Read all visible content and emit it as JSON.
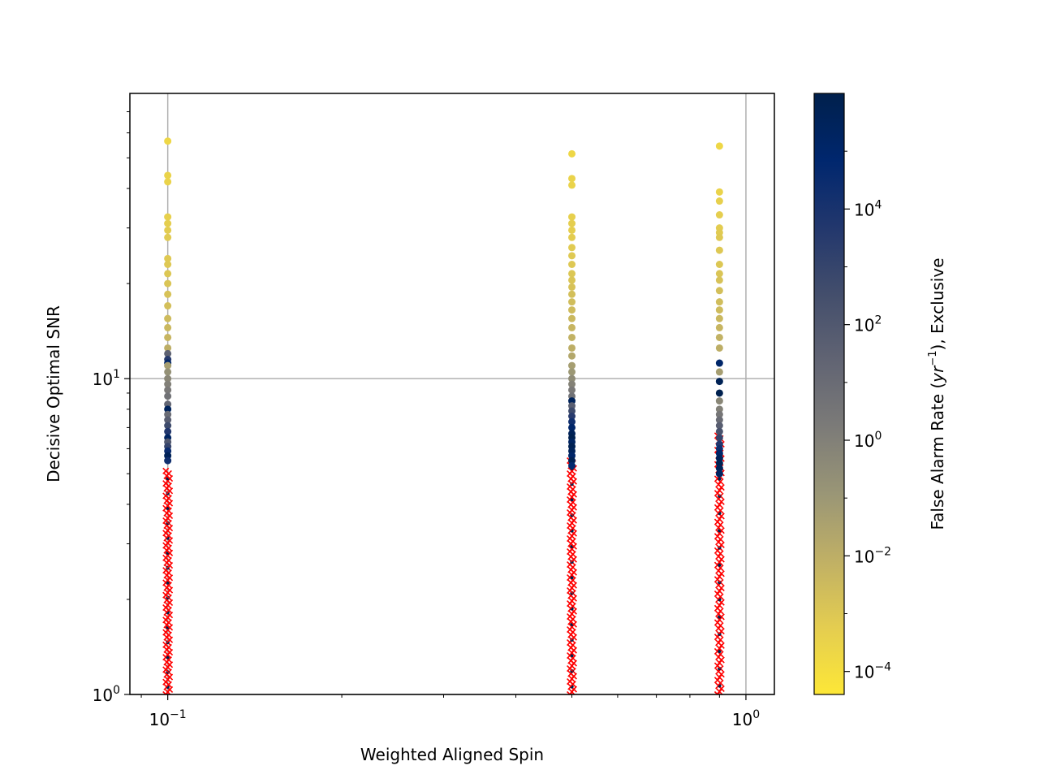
{
  "chart_data": {
    "type": "scatter",
    "xlabel": "Weighted Aligned Spin",
    "ylabel": "Decisive Optimal SNR",
    "xscale": "log",
    "yscale": "log",
    "xlim": [
      0.086,
      1.12
    ],
    "ylim": [
      1,
      80
    ],
    "grid": true,
    "x_ticks": [
      {
        "value": 0.1,
        "base": "10",
        "exp": "−1"
      },
      {
        "value": 1,
        "base": "10",
        "exp": "0"
      }
    ],
    "y_ticks": [
      {
        "value": 1,
        "base": "10",
        "exp": "0"
      },
      {
        "value": 10,
        "base": "10",
        "exp": "1"
      }
    ],
    "colorbar": {
      "label_prefix": "False Alarm Rate (",
      "label_var": "yr",
      "label_exp": "−1",
      "label_suffix": "), Exclusive",
      "scale": "log",
      "range": [
        4e-05,
        1000000.0
      ],
      "colormap": "cividis_r",
      "ticks": [
        {
          "value": 0.0001,
          "base": "10",
          "exp": "−4"
        },
        {
          "value": 0.01,
          "base": "10",
          "exp": "−2"
        },
        {
          "value": 1,
          "base": "10",
          "exp": "0"
        },
        {
          "value": 100,
          "base": "10",
          "exp": "2"
        },
        {
          "value": 10000,
          "base": "10",
          "exp": "4"
        }
      ]
    },
    "missed_marker_color": "#ff0000",
    "colormap_stops": [
      "#fde737",
      "#e4cd50",
      "#c0b065",
      "#9a9676",
      "#7c7b78",
      "#616473",
      "#434e6c",
      "#22376d",
      "#00276e",
      "#00204c"
    ],
    "found_series": [
      {
        "x": 0.1,
        "snr": [
          56.5,
          44.0,
          42.0,
          32.5,
          31.0,
          29.5,
          28.0,
          24.0,
          23.0,
          21.5,
          20.0,
          18.5,
          17.0,
          15.5,
          14.5,
          13.5,
          12.5,
          12.0,
          11.5,
          11.2,
          11.0,
          10.5,
          10.0,
          9.6,
          9.2,
          8.8,
          8.3,
          8.0,
          7.7,
          7.4,
          7.1,
          6.8,
          6.5,
          6.3,
          6.1,
          5.9,
          5.7,
          5.5
        ],
        "far": [
          0.0002,
          0.0003,
          0.0003,
          0.0004,
          0.0005,
          0.0006,
          0.0007,
          0.0008,
          0.0009,
          0.001,
          0.0012,
          0.0015,
          0.002,
          0.003,
          0.004,
          0.005,
          0.01,
          30,
          3000,
          100000,
          0.05,
          0.2,
          0.5,
          1,
          2,
          5,
          20,
          300000,
          10,
          50,
          500,
          5000,
          200000,
          100,
          1000,
          30000,
          400000,
          20000
        ]
      },
      {
        "x": 0.5,
        "snr": [
          51.5,
          43.0,
          41.0,
          32.5,
          31.0,
          29.5,
          28.0,
          26.0,
          24.5,
          23.0,
          21.5,
          20.5,
          19.5,
          18.5,
          17.5,
          16.5,
          15.5,
          14.5,
          13.5,
          12.5,
          11.8,
          11.0,
          10.5,
          10.0,
          9.6,
          9.2,
          8.8,
          8.5,
          8.2,
          7.9,
          7.6,
          7.3,
          7.0,
          6.7,
          6.5,
          6.3,
          6.1,
          5.9,
          5.7,
          5.5,
          5.3
        ],
        "far": [
          0.0002,
          0.0003,
          0.0003,
          0.0004,
          0.0005,
          0.0005,
          0.0006,
          0.0007,
          0.0008,
          0.0009,
          0.001,
          0.0012,
          0.0015,
          0.002,
          0.0025,
          0.003,
          0.004,
          0.005,
          0.007,
          0.01,
          0.02,
          0.05,
          0.1,
          0.3,
          0.8,
          2,
          5,
          300000,
          50,
          500,
          3000,
          20000,
          100000,
          400000,
          800000,
          200000,
          600000,
          300000,
          100000,
          500000,
          50000
        ]
      },
      {
        "x": 0.9,
        "snr": [
          54.5,
          39.0,
          36.5,
          33.0,
          30.0,
          29.0,
          28.0,
          25.5,
          23.0,
          21.5,
          20.5,
          19.0,
          17.5,
          16.5,
          15.5,
          14.5,
          13.5,
          12.5,
          11.2,
          10.5,
          9.8,
          9.0,
          8.5,
          8.0,
          7.7,
          7.4,
          7.1,
          6.8,
          6.5,
          6.2,
          6.0,
          5.8,
          5.6,
          5.4,
          5.2,
          5.0
        ],
        "far": [
          0.0002,
          0.0003,
          0.0004,
          0.0005,
          0.0006,
          0.0007,
          0.0008,
          0.0009,
          0.001,
          0.0012,
          0.0015,
          0.002,
          0.0025,
          0.003,
          0.004,
          0.005,
          0.007,
          0.01,
          100000,
          0.05,
          500000,
          800000,
          0.5,
          1,
          3,
          10,
          50,
          200,
          1000,
          5000,
          20000,
          100000,
          300000,
          600000,
          400000,
          200000
        ]
      }
    ],
    "missed_series": [
      {
        "x": 0.1,
        "snr_range": [
          1.0,
          5.1
        ]
      },
      {
        "x": 0.5,
        "snr_range": [
          1.0,
          5.5
        ]
      },
      {
        "x": 0.9,
        "snr_range": [
          1.0,
          6.6
        ]
      }
    ]
  }
}
